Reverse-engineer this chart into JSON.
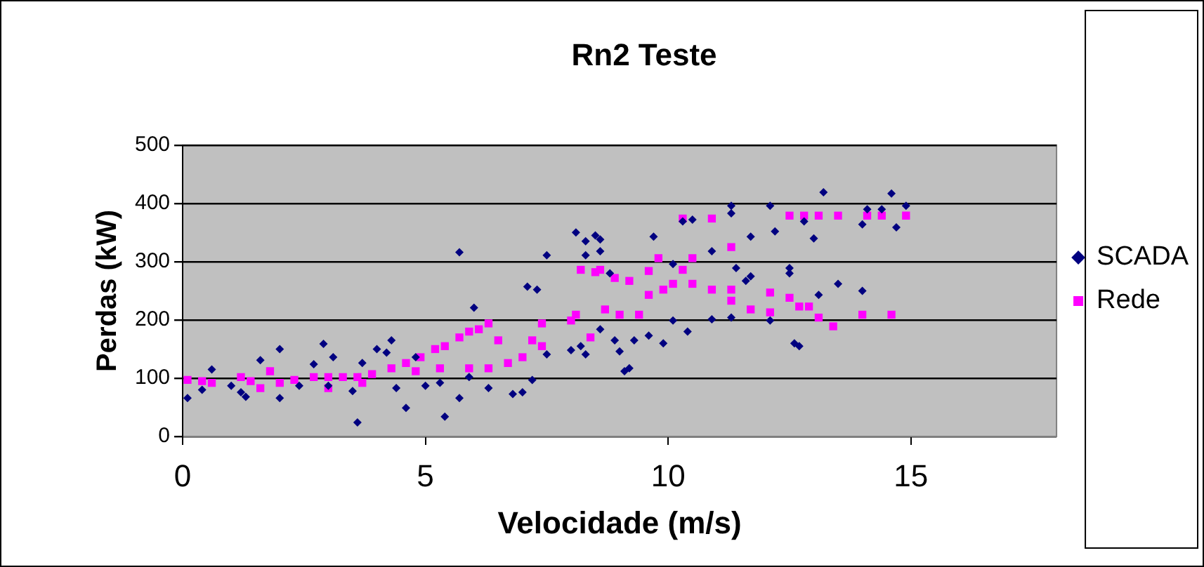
{
  "chart_data": {
    "type": "scatter",
    "title": "Rn2 Teste",
    "xlabel": "Velocidade (m/s)",
    "ylabel": "Perdas (kW)",
    "xlim": [
      0,
      18
    ],
    "xticks": [
      0,
      5,
      10,
      15
    ],
    "ylim": [
      0,
      500
    ],
    "yticks": [
      0,
      100,
      200,
      300,
      400,
      500
    ],
    "grid": "y",
    "legend": "right",
    "series": [
      {
        "name": "SCADA",
        "color": "#000080",
        "marker": "diamond",
        "x": [
          0.1,
          0.6,
          0.4,
          1.2,
          1.3,
          1.6,
          2.0,
          2.0,
          2.7,
          2.9,
          3.1,
          3.6,
          3.7,
          4.0,
          4.3,
          4.2,
          4.6,
          4.8,
          5.4,
          5.7,
          6.0,
          5.7,
          6.3,
          6.8,
          7.1,
          7.3,
          7.0,
          7.2,
          7.5,
          7.5,
          8.1,
          8.3,
          8.3,
          8.5,
          8.6,
          8.6,
          8.0,
          8.3,
          3.5,
          3.0,
          2.4,
          4.4,
          5.0,
          5.3,
          5.9,
          1.0,
          8.8,
          8.2,
          8.6,
          8.9,
          9.1,
          9.2,
          9.0,
          9.3,
          9.6,
          9.7,
          9.9,
          10.1,
          10.1,
          10.4,
          10.3,
          10.5,
          10.9,
          10.9,
          11.3,
          11.3,
          11.4,
          11.3,
          11.6,
          11.7,
          11.7,
          12.1,
          12.2,
          12.1,
          12.5,
          12.5,
          12.6,
          12.7,
          12.8,
          13.0,
          13.1,
          13.2,
          13.5,
          14.0,
          14.0,
          14.1,
          14.4,
          14.6,
          14.7,
          14.9
        ],
        "values": [
          66,
          115,
          80,
          76,
          68,
          131,
          150,
          66,
          124,
          159,
          136,
          24,
          126,
          150,
          165,
          144,
          49,
          136,
          34,
          316,
          221,
          66,
          83,
          73,
          257,
          252,
          76,
          97,
          311,
          141,
          350,
          311,
          335,
          345,
          338,
          318,
          148,
          141,
          78,
          87,
          87,
          83,
          87,
          92,
          102,
          87,
          280,
          155,
          184,
          165,
          112,
          117,
          146,
          165,
          173,
          343,
          160,
          296,
          199,
          180,
          369,
          372,
          318,
          201,
          396,
          383,
          289,
          204,
          267,
          343,
          275,
          396,
          352,
          199,
          289,
          280,
          160,
          155,
          369,
          340,
          243,
          419,
          262,
          250,
          364,
          390,
          390,
          417,
          359,
          396
        ]
      },
      {
        "name": "Rede",
        "color": "#ff00ff",
        "marker": "square",
        "x": [
          0.1,
          0.4,
          0.6,
          1.2,
          1.4,
          1.6,
          1.8,
          2.0,
          2.3,
          2.7,
          3.0,
          3.3,
          3.6,
          3.9,
          4.3,
          4.6,
          4.9,
          5.2,
          5.4,
          5.7,
          5.9,
          6.1,
          6.3,
          6.5,
          6.3,
          5.9,
          5.3,
          4.8,
          3.7,
          3.0,
          6.7,
          7.0,
          7.2,
          7.4,
          7.4,
          8.0,
          8.2,
          8.5,
          8.6,
          8.4,
          8.7,
          8.9,
          8.1,
          9.2,
          9.0,
          9.4,
          9.6,
          9.9,
          10.1,
          9.6,
          9.8,
          10.3,
          10.3,
          10.5,
          10.5,
          10.9,
          10.9,
          11.3,
          11.3,
          11.3,
          11.7,
          12.1,
          12.1,
          12.5,
          12.5,
          12.7,
          12.8,
          12.9,
          13.1,
          13.1,
          13.5,
          13.4,
          14.0,
          14.1,
          14.4,
          14.6,
          14.9
        ],
        "values": [
          97,
          95,
          92,
          102,
          95,
          83,
          112,
          92,
          97,
          102,
          102,
          102,
          102,
          107,
          117,
          126,
          136,
          150,
          155,
          170,
          180,
          184,
          194,
          165,
          117,
          117,
          117,
          112,
          92,
          83,
          126,
          136,
          165,
          194,
          155,
          199,
          286,
          282,
          286,
          170,
          218,
          272,
          209,
          267,
          209,
          209,
          243,
          252,
          262,
          284,
          306,
          374,
          286,
          262,
          306,
          252,
          374,
          325,
          252,
          233,
          218,
          247,
          213,
          238,
          379,
          223,
          379,
          223,
          204,
          379,
          379,
          189,
          209,
          379,
          379,
          209,
          379
        ]
      }
    ]
  }
}
